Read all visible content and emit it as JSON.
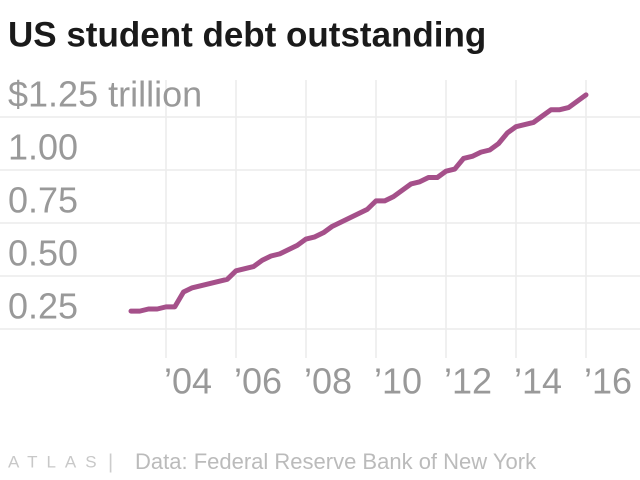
{
  "chart_data": {
    "type": "line",
    "title": "US student debt outstanding",
    "x": [
      2003,
      2003.25,
      2003.5,
      2003.75,
      2004,
      2004.25,
      2004.5,
      2004.75,
      2005,
      2005.25,
      2005.5,
      2005.75,
      2006,
      2006.25,
      2006.5,
      2006.75,
      2007,
      2007.25,
      2007.5,
      2007.75,
      2008,
      2008.25,
      2008.5,
      2008.75,
      2009,
      2009.25,
      2009.5,
      2009.75,
      2010,
      2010.25,
      2010.5,
      2010.75,
      2011,
      2011.25,
      2011.5,
      2011.75,
      2012,
      2012.25,
      2012.5,
      2012.75,
      2013,
      2013.25,
      2013.5,
      2013.75,
      2014,
      2014.25,
      2014.5,
      2014.75,
      2015,
      2015.25,
      2015.5,
      2015.75,
      2016
    ],
    "series": [
      {
        "color": "#a5508a",
        "values": [
          0.24,
          0.24,
          0.25,
          0.25,
          0.26,
          0.26,
          0.33,
          0.35,
          0.36,
          0.37,
          0.38,
          0.39,
          0.43,
          0.44,
          0.45,
          0.48,
          0.5,
          0.51,
          0.53,
          0.55,
          0.58,
          0.59,
          0.61,
          0.64,
          0.66,
          0.68,
          0.7,
          0.72,
          0.76,
          0.76,
          0.78,
          0.81,
          0.84,
          0.85,
          0.87,
          0.87,
          0.9,
          0.91,
          0.96,
          0.97,
          0.99,
          1.0,
          1.03,
          1.08,
          1.11,
          1.12,
          1.13,
          1.16,
          1.19,
          1.19,
          1.2,
          1.23,
          1.26
        ]
      }
    ],
    "xlim": [
      1999.5,
      2017
    ],
    "xticks": [
      {
        "value": 2004,
        "label": "’04"
      },
      {
        "value": 2006,
        "label": "’06"
      },
      {
        "value": 2008,
        "label": "’08"
      },
      {
        "value": 2010,
        "label": "’10"
      },
      {
        "value": 2012,
        "label": "’12"
      },
      {
        "value": 2014,
        "label": "’14"
      },
      {
        "value": 2016,
        "label": "’16"
      }
    ],
    "ylim": [
      0,
      1.25
    ],
    "yticks": [
      0.25,
      {
        "value": 0.5,
        "label": "0.50"
      },
      0.75,
      {
        "value": 1,
        "label": "1.00"
      },
      {
        "value": 1.25,
        "label": "$1.25 trillion"
      }
    ],
    "grid": true,
    "logo": "ATLAS",
    "source": "Data: Federal Reserve Bank of New York"
  }
}
